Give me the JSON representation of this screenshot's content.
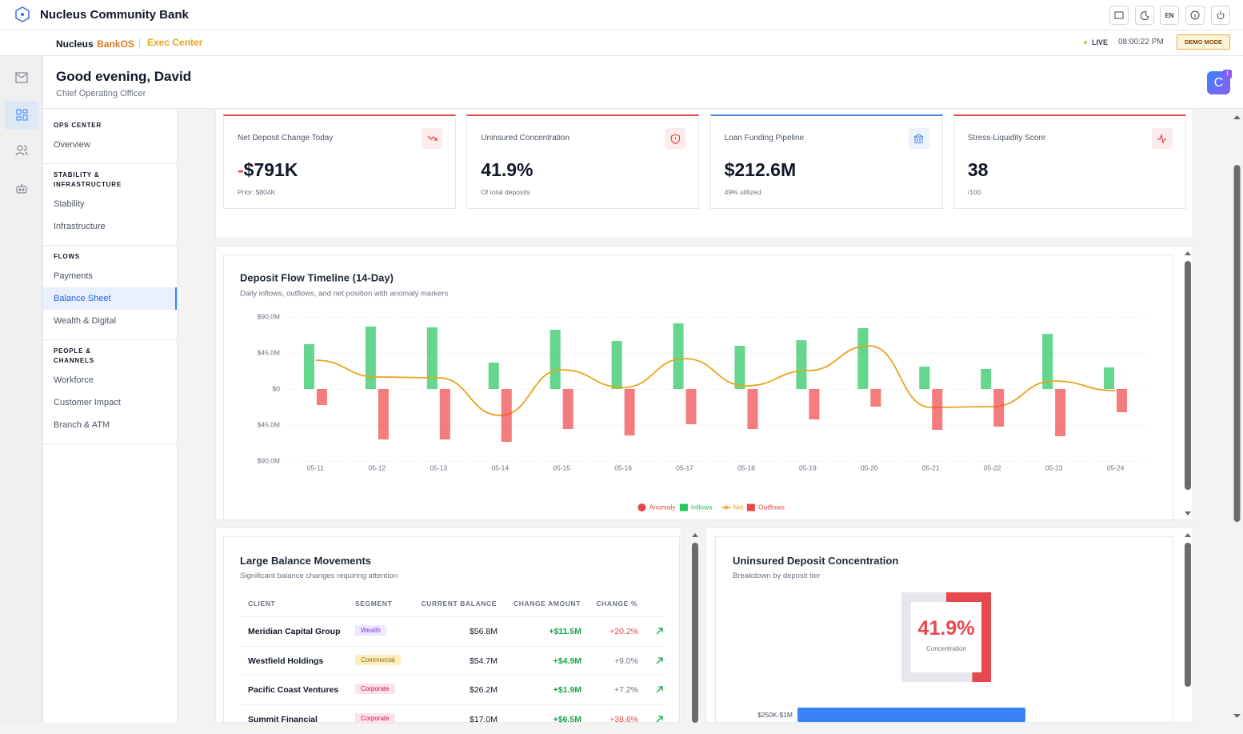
{
  "header": {
    "brand": "Nucleus Community Bank",
    "language": "EN"
  },
  "subheader": {
    "product": "Nucleus",
    "product_suffix": "BankOS",
    "section": "Exec Center",
    "status": "LIVE",
    "time": "08:00:22 PM",
    "mode": "DEMO MODE"
  },
  "greeting": {
    "title": "Good evening, David",
    "role": "Chief Operating Officer"
  },
  "assistant": {
    "initial": "C",
    "badge": "1"
  },
  "nav": {
    "groups": [
      {
        "title": "OPS CENTER",
        "items": [
          "Overview"
        ]
      },
      {
        "title": "STABILITY & INFRASTRUCTURE",
        "items": [
          "Stability",
          "Infrastructure"
        ]
      },
      {
        "title": "FLOWS",
        "items": [
          "Payments",
          "Balance Sheet",
          "Wealth & Digital"
        ],
        "active_item": 1
      },
      {
        "title": "PEOPLE & CHANNELS",
        "items": [
          "Workforce",
          "Customer Impact",
          "Branch & ATM"
        ]
      }
    ]
  },
  "kpis": [
    {
      "title": "Net Deposit Change Today",
      "sign": "-",
      "value": "$791K",
      "note": "Prior: $804K",
      "accent": "#e5484d"
    },
    {
      "title": "Uninsured Concentration",
      "value": "41.9%",
      "note": "Of total deposits",
      "accent": "#e5484d"
    },
    {
      "title": "Loan Funding Pipeline",
      "value": "$212.6M",
      "note": "49% utilized",
      "accent": "#4a8ad8"
    },
    {
      "title": "Stress-Liquidity Score",
      "value": "38",
      "note": "/100",
      "accent": "#e5484d"
    }
  ],
  "chart_data": {
    "type": "bar",
    "title": "Deposit Flow Timeline (14-Day)",
    "subtitle": "Daily inflows, outflows, and net position with anomaly markers",
    "categories": [
      "05-11",
      "05-12",
      "05-13",
      "05-14",
      "05-15",
      "05-16",
      "05-17",
      "05-18",
      "05-19",
      "05-20",
      "05-21",
      "05-22",
      "05-23",
      "05-24"
    ],
    "series": [
      {
        "name": "Anomaly",
        "type": "scatter",
        "color": "#e5484d",
        "values": [
          null,
          null,
          null,
          null,
          null,
          null,
          null,
          null,
          null,
          null,
          null,
          null,
          null,
          null
        ]
      },
      {
        "name": "Inflows",
        "type": "bar",
        "color": "#22c55e",
        "values": [
          56,
          78,
          77,
          33,
          74,
          60,
          82,
          54,
          61,
          76,
          28,
          25,
          69,
          27
        ]
      },
      {
        "name": "Net",
        "type": "line",
        "color": "#e8a317",
        "values": [
          36,
          15,
          14,
          -33,
          24,
          2,
          38,
          4,
          23,
          54,
          -23,
          -22,
          10,
          -2
        ]
      },
      {
        "name": "Outflows",
        "type": "bar",
        "color": "#ef4444",
        "values": [
          -20,
          -63,
          -63,
          -66,
          -50,
          -58,
          -44,
          -50,
          -38,
          -22,
          -51,
          -47,
          -59,
          -29
        ]
      }
    ],
    "ylim": [
      -90,
      90
    ],
    "yticks": [
      {
        "value": -90,
        "label": "$90.0M"
      },
      {
        "value": -45,
        "label": "$45.0M"
      },
      {
        "value": 0,
        "label": "$0"
      },
      {
        "value": 45,
        "label": "$45.0M"
      },
      {
        "value": 90,
        "label": "$90.0M"
      }
    ],
    "grid": true,
    "legend": "bottom"
  },
  "movements": {
    "title": "Large Balance Movements",
    "subtitle": "Significant balance changes requiring attention",
    "columns": [
      "CLIENT",
      "SEGMENT",
      "CURRENT BALANCE",
      "CHANGE AMOUNT",
      "CHANGE %"
    ],
    "rows": [
      {
        "client": "Meridian Capital Group",
        "segment": "Wealth",
        "balance": "$56.8M",
        "change": "+$11.5M",
        "change_pct": "+20.2%",
        "segment_bg": "#efe6ff",
        "segment_fg": "#7c3aed",
        "pct_color": "#e5484d"
      },
      {
        "client": "Westfield Holdings",
        "segment": "Commercial",
        "balance": "$54.7M",
        "change": "+$4.9M",
        "change_pct": "+9.0%",
        "segment_bg": "#fbefc0",
        "segment_fg": "#8a6d0a",
        "pct_color": "#6b7280"
      },
      {
        "client": "Pacific Coast Ventures",
        "segment": "Corporate",
        "balance": "$26.2M",
        "change": "+$1.9M",
        "change_pct": "+7.2%",
        "segment_bg": "#fde2ea",
        "segment_fg": "#be185d",
        "pct_color": "#6b7280"
      },
      {
        "client": "Summit Financial",
        "segment": "Corporate",
        "balance": "$17.0M",
        "change": "+$6.5M",
        "change_pct": "+38.6%",
        "segment_bg": "#fde2ea",
        "segment_fg": "#be185d",
        "pct_color": "#e5484d"
      }
    ]
  },
  "concentration": {
    "title": "Uninsured Deposit Concentration",
    "subtitle": "Breakdown by deposit tier",
    "value": 41.9,
    "value_label": "41.9%",
    "label": "Concentration",
    "color": "#e5484d",
    "tiers": [
      "$250K-$1M"
    ]
  }
}
